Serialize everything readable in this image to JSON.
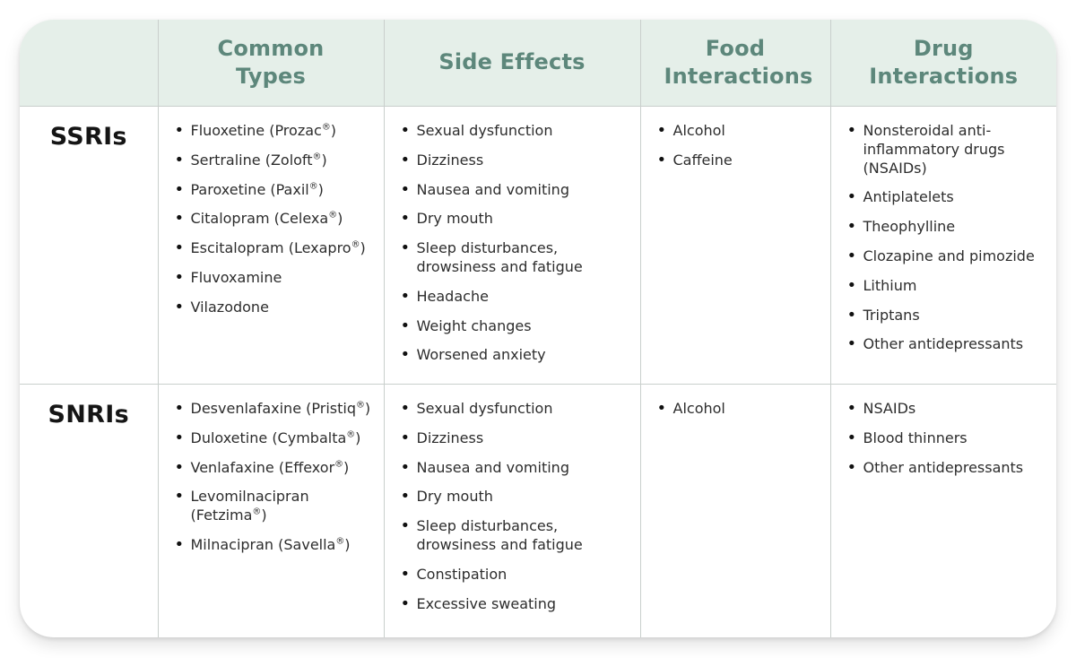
{
  "colors": {
    "header_background": "#e5efe9",
    "header_text": "#5d877b",
    "grid_border": "#c9cfcc",
    "body_text": "#2d2d2d",
    "row_label_text": "#151515",
    "card_background": "#ffffff",
    "page_background": "#ffffff"
  },
  "table": {
    "columns": [
      "",
      "Common Types",
      "Side Effects",
      "Food Interactions",
      "Drug Interactions"
    ],
    "rows": [
      {
        "label": "SSRIs",
        "cells": [
          [
            "Fluoxetine (Prozac®)",
            "Sertraline (Zoloft®)",
            "Paroxetine (Paxil®)",
            "Citalopram (Celexa®)",
            "Escitalopram (Lexapro®)",
            "Fluvoxamine",
            "Vilazodone"
          ],
          [
            "Sexual dysfunction",
            "Dizziness",
            "Nausea and vomiting",
            "Dry mouth",
            "Sleep disturbances, drowsiness and fatigue",
            "Headache",
            "Weight changes",
            "Worsened anxiety"
          ],
          [
            "Alcohol",
            "Caffeine"
          ],
          [
            "Nonsteroidal anti-inflammatory drugs (NSAIDs)",
            "Antiplatelets",
            "Theophylline",
            "Clozapine and pimozide",
            "Lithium",
            "Triptans",
            "Other antidepressants"
          ]
        ]
      },
      {
        "label": "SNRIs",
        "cells": [
          [
            "Desvenlafaxine (Pristiq®)",
            "Duloxetine (Cymbalta®)",
            "Venlafaxine (Effexor®)",
            "Levomilnacipran (Fetzima®)",
            "Milnacipran (Savella®)"
          ],
          [
            "Sexual dysfunction",
            "Dizziness",
            "Nausea and vomiting",
            "Dry mouth",
            "Sleep disturbances, drowsiness and fatigue",
            "Constipation",
            "Excessive sweating"
          ],
          [
            "Alcohol"
          ],
          [
            "NSAIDs",
            "Blood thinners",
            "Other antidepressants"
          ]
        ]
      }
    ]
  }
}
